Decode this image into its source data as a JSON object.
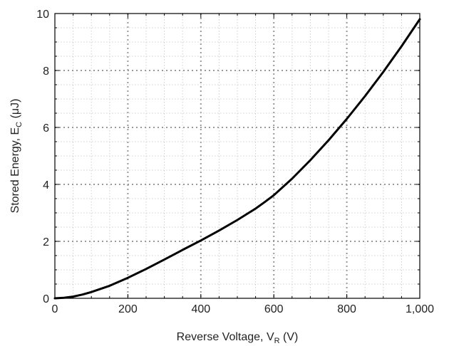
{
  "chart_data": {
    "type": "line",
    "xlabel": "Reverse Voltage, V",
    "xlabel_sub": "R",
    "xlabel_unit": " (V)",
    "ylabel": "Stored Energy, E",
    "ylabel_sub": "C",
    "ylabel_unit": " (μJ)",
    "xlim": [
      0,
      1000
    ],
    "ylim": [
      0,
      10
    ],
    "x_ticks": [
      0,
      200,
      400,
      600,
      800,
      1000
    ],
    "x_tick_labels": [
      "0",
      "200",
      "400",
      "600",
      "800",
      "1,000"
    ],
    "y_ticks": [
      0,
      2,
      4,
      6,
      8,
      10
    ],
    "y_tick_labels": [
      "0",
      "2",
      "4",
      "6",
      "8",
      "10"
    ],
    "grid": true,
    "series": [
      {
        "color": "#000000",
        "x": [
          0,
          25,
          50,
          75,
          100,
          150,
          200,
          250,
          300,
          350,
          400,
          450,
          500,
          550,
          575,
          600,
          650,
          700,
          750,
          800,
          850,
          900,
          950,
          1000
        ],
        "y": [
          0,
          0.02,
          0.06,
          0.13,
          0.22,
          0.44,
          0.72,
          1.03,
          1.36,
          1.7,
          2.03,
          2.38,
          2.75,
          3.15,
          3.38,
          3.62,
          4.2,
          4.85,
          5.55,
          6.3,
          7.1,
          7.95,
          8.85,
          9.8
        ]
      }
    ]
  }
}
